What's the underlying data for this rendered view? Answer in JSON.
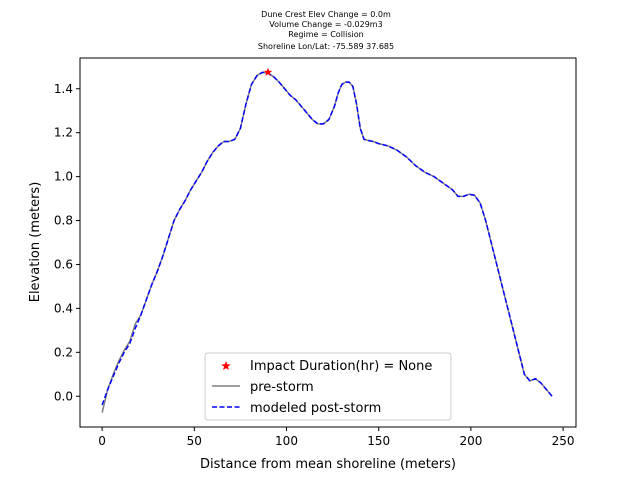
{
  "chart_data": {
    "type": "line",
    "title_lines": [
      "Dune Crest Elev Change = 0.0m",
      "Volume Change = -0.029m3",
      "Regime = Collision",
      "Shoreline Lon/Lat: -75.589 37.685"
    ],
    "xlabel": "Distance from mean shoreline (meters)",
    "ylabel": "Elevation (meters)",
    "xlim": [
      -12,
      257
    ],
    "ylim": [
      -0.14,
      1.54
    ],
    "xticks": [
      0,
      50,
      100,
      150,
      200,
      250
    ],
    "yticks": [
      0.0,
      0.2,
      0.4,
      0.6,
      0.8,
      1.0,
      1.2,
      1.4
    ],
    "xtick_labels": [
      "0",
      "50",
      "100",
      "150",
      "200",
      "250"
    ],
    "ytick_labels": [
      "0.0",
      "0.2",
      "0.4",
      "0.6",
      "0.8",
      "1.0",
      "1.2",
      "1.4"
    ],
    "grid": false,
    "legend_position": "lower center",
    "legend": [
      {
        "label": "Impact Duration(hr) = None",
        "marker": "star",
        "color": "#ff0000"
      },
      {
        "label": "pre-storm",
        "style": "solid",
        "color": "#808080"
      },
      {
        "label": "modeled post-storm",
        "style": "dashed",
        "color": "#0000ff"
      }
    ],
    "series": [
      {
        "name": "pre-storm",
        "color": "#808080",
        "x": [
          0,
          3,
          6,
          9,
          12,
          15,
          18,
          21,
          24,
          27,
          30,
          33,
          36,
          39,
          42,
          45,
          48,
          51,
          54,
          57,
          60,
          63,
          66,
          69,
          72,
          75,
          78,
          81,
          84,
          87,
          90,
          93,
          96,
          99,
          102,
          105,
          108,
          111,
          114,
          117,
          120,
          123,
          126,
          128,
          130,
          132,
          134,
          136,
          138,
          140,
          142,
          144,
          147,
          150,
          155,
          160,
          165,
          170,
          175,
          180,
          185,
          190,
          193,
          196,
          199,
          202,
          205,
          208,
          211,
          214,
          217,
          220,
          223,
          226,
          229,
          232,
          235,
          238,
          241,
          244
        ],
        "y": [
          -0.075,
          0.03,
          0.1,
          0.16,
          0.21,
          0.25,
          0.33,
          0.37,
          0.44,
          0.51,
          0.57,
          0.64,
          0.72,
          0.8,
          0.85,
          0.89,
          0.94,
          0.98,
          1.02,
          1.07,
          1.11,
          1.14,
          1.16,
          1.16,
          1.17,
          1.22,
          1.33,
          1.42,
          1.46,
          1.475,
          1.47,
          1.455,
          1.43,
          1.4,
          1.37,
          1.35,
          1.32,
          1.29,
          1.26,
          1.24,
          1.24,
          1.26,
          1.32,
          1.38,
          1.42,
          1.43,
          1.43,
          1.41,
          1.33,
          1.22,
          1.17,
          1.165,
          1.16,
          1.15,
          1.14,
          1.12,
          1.09,
          1.05,
          1.02,
          1.0,
          0.97,
          0.94,
          0.91,
          0.91,
          0.92,
          0.915,
          0.88,
          0.8,
          0.7,
          0.6,
          0.5,
          0.4,
          0.3,
          0.2,
          0.1,
          0.07,
          0.08,
          0.06,
          0.03,
          0.0
        ]
      },
      {
        "name": "modeled post-storm",
        "color": "#0000ff",
        "x": [
          0,
          3,
          6,
          9,
          12,
          15,
          18,
          21,
          24,
          27,
          30,
          33,
          36,
          39,
          42,
          45,
          48,
          51,
          54,
          57,
          60,
          63,
          66,
          69,
          72,
          75,
          78,
          81,
          84,
          87,
          90,
          93,
          96,
          99,
          102,
          105,
          108,
          111,
          114,
          117,
          120,
          123,
          126,
          128,
          130,
          132,
          134,
          136,
          138,
          140,
          142,
          144,
          147,
          150,
          155,
          160,
          165,
          170,
          175,
          180,
          185,
          190,
          193,
          196,
          199,
          202,
          205,
          208,
          211,
          214,
          217,
          220,
          223,
          226,
          229,
          232,
          235,
          238,
          241,
          244
        ],
        "y": [
          -0.04,
          0.03,
          0.09,
          0.15,
          0.2,
          0.24,
          0.31,
          0.37,
          0.44,
          0.51,
          0.57,
          0.64,
          0.72,
          0.8,
          0.85,
          0.89,
          0.94,
          0.98,
          1.02,
          1.07,
          1.11,
          1.14,
          1.16,
          1.16,
          1.17,
          1.22,
          1.33,
          1.42,
          1.46,
          1.475,
          1.47,
          1.455,
          1.43,
          1.4,
          1.37,
          1.35,
          1.32,
          1.29,
          1.26,
          1.24,
          1.24,
          1.26,
          1.32,
          1.38,
          1.42,
          1.43,
          1.43,
          1.41,
          1.33,
          1.22,
          1.17,
          1.165,
          1.16,
          1.15,
          1.14,
          1.12,
          1.09,
          1.05,
          1.02,
          1.0,
          0.97,
          0.94,
          0.91,
          0.91,
          0.92,
          0.915,
          0.88,
          0.8,
          0.7,
          0.6,
          0.5,
          0.4,
          0.3,
          0.2,
          0.1,
          0.07,
          0.08,
          0.06,
          0.03,
          0.0
        ]
      }
    ],
    "dune_crest_marker": {
      "x": 90,
      "y": 1.475,
      "color": "#ff0000"
    }
  }
}
